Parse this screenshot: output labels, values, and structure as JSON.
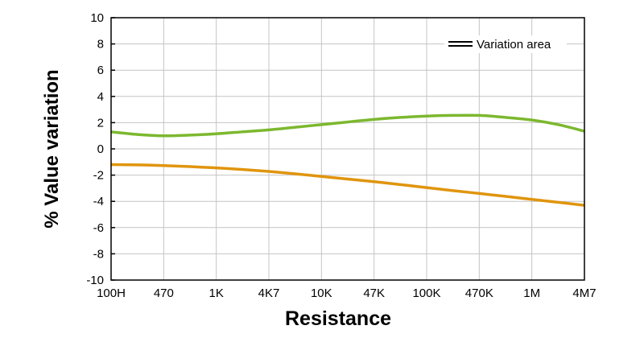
{
  "chart_data": {
    "type": "line",
    "title": "",
    "xlabel": "Resistance",
    "ylabel": "% Value variation",
    "categories": [
      "100H",
      "470",
      "1K",
      "4K7",
      "10K",
      "47K",
      "100K",
      "470K",
      "1M",
      "4M7"
    ],
    "y_ticks": [
      "10",
      "8",
      "6",
      "4",
      "2",
      "0",
      "-2",
      "-4",
      "-6",
      "-8",
      "-10"
    ],
    "ylim": [
      -10,
      10
    ],
    "grid": true,
    "legend": {
      "placement": "top-right",
      "label": "Variation area"
    },
    "series": [
      {
        "color": "#7cb82f",
        "x": [
          0,
          0.5,
          1,
          1.5,
          2,
          2.5,
          3,
          3.5,
          4,
          4.5,
          5,
          5.5,
          6,
          6.5,
          7,
          7.5,
          8,
          8.5,
          9
        ],
        "values": [
          1.3,
          1.1,
          1.0,
          1.05,
          1.15,
          1.3,
          1.45,
          1.65,
          1.85,
          2.05,
          2.25,
          2.4,
          2.5,
          2.55,
          2.55,
          2.4,
          2.2,
          1.85,
          1.35
        ]
      },
      {
        "color": "#e0950e",
        "x": [
          0,
          0.5,
          1,
          1.5,
          2,
          2.5,
          3,
          3.5,
          4,
          4.5,
          5,
          5.5,
          6,
          6.5,
          7,
          7.5,
          8,
          8.5,
          9
        ],
        "values": [
          -1.2,
          -1.22,
          -1.27,
          -1.35,
          -1.45,
          -1.57,
          -1.72,
          -1.9,
          -2.1,
          -2.3,
          -2.5,
          -2.72,
          -2.95,
          -3.18,
          -3.4,
          -3.62,
          -3.85,
          -4.07,
          -4.3
        ]
      }
    ]
  }
}
